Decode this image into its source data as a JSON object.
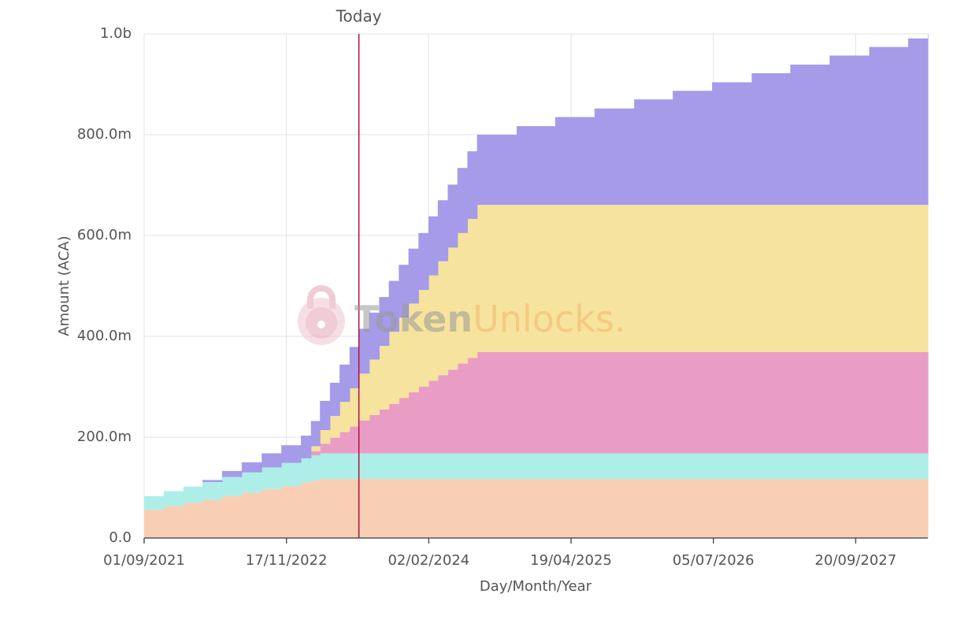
{
  "chart_data": {
    "type": "area",
    "step": true,
    "stacked": true,
    "xlabel": "Day/Month/Year",
    "ylabel": "Amount (ACA)",
    "watermark": [
      "Token",
      "Unlocks."
    ],
    "annotations": [
      {
        "text": "Today",
        "x": "30/06/2023",
        "color": "#b0103f"
      }
    ],
    "grid": true,
    "xlim": [
      "01/09/2021",
      "01/05/2028"
    ],
    "xticks": [
      "01/09/2021",
      "17/11/2022",
      "02/02/2024",
      "19/04/2025",
      "05/07/2026",
      "20/09/2027"
    ],
    "ylim": [
      0,
      1000
    ],
    "yticks": [
      {
        "value": 0,
        "label": "0.0"
      },
      {
        "value": 200,
        "label": "200.0m"
      },
      {
        "value": 400,
        "label": "400.0m"
      },
      {
        "value": 600,
        "label": "600.0m"
      },
      {
        "value": 800,
        "label": "800.0m"
      },
      {
        "value": 1000,
        "label": "1.0b"
      }
    ],
    "x": [
      "01/09/2021",
      "01/11/2021",
      "01/01/2022",
      "01/03/2022",
      "01/05/2022",
      "01/07/2022",
      "01/09/2022",
      "01/11/2022",
      "01/01/2023",
      "01/02/2023",
      "01/03/2023",
      "01/04/2023",
      "01/05/2023",
      "01/06/2023",
      "01/07/2023",
      "01/08/2023",
      "01/09/2023",
      "01/10/2023",
      "01/11/2023",
      "01/12/2023",
      "01/01/2024",
      "01/02/2024",
      "01/03/2024",
      "01/04/2024",
      "01/05/2024",
      "01/06/2024",
      "01/07/2024",
      "01/11/2024",
      "01/03/2025",
      "01/07/2025",
      "01/11/2025",
      "01/03/2026",
      "01/07/2026",
      "01/11/2026",
      "01/03/2027",
      "01/07/2027",
      "01/11/2027",
      "01/03/2028",
      "01/05/2028"
    ],
    "series": [
      {
        "color": "#f8cfb5",
        "values": [
          56,
          63,
          70,
          76,
          83,
          90,
          97,
          103,
          110,
          114,
          117,
          117,
          117,
          117,
          117,
          117,
          117,
          117,
          117,
          117,
          117,
          117,
          117,
          117,
          117,
          117,
          117,
          117,
          117,
          117,
          117,
          117,
          117,
          117,
          117,
          117,
          117,
          117,
          117
        ]
      },
      {
        "color": "#aeeee8",
        "values": [
          27,
          30,
          32,
          35,
          38,
          40,
          43,
          46,
          48,
          50,
          51,
          51,
          51,
          51,
          51,
          51,
          51,
          51,
          51,
          51,
          51,
          51,
          51,
          51,
          51,
          51,
          51,
          51,
          51,
          51,
          51,
          51,
          51,
          51,
          51,
          51,
          51,
          51,
          51
        ]
      },
      {
        "color": "#e99dc4",
        "values": [
          0,
          0,
          0,
          0,
          0,
          0,
          0,
          0,
          0,
          8,
          19,
          31,
          42,
          53,
          65,
          76,
          87,
          98,
          110,
          121,
          132,
          144,
          155,
          166,
          178,
          189,
          201,
          201,
          201,
          201,
          201,
          201,
          201,
          201,
          201,
          201,
          201,
          201,
          201
        ]
      },
      {
        "color": "#f6e39e",
        "values": [
          0,
          0,
          0,
          0,
          0,
          0,
          0,
          0,
          0,
          10,
          27,
          43,
          60,
          76,
          93,
          110,
          126,
          143,
          159,
          176,
          192,
          209,
          226,
          242,
          259,
          276,
          292,
          292,
          292,
          292,
          292,
          292,
          292,
          292,
          292,
          292,
          292,
          292,
          292
        ]
      },
      {
        "color": "#a59be9",
        "values": [
          0,
          0,
          0,
          4,
          12,
          20,
          28,
          35,
          45,
          50,
          58,
          66,
          74,
          82,
          89,
          93,
          97,
          101,
          105,
          109,
          113,
          117,
          121,
          125,
          129,
          134,
          139,
          156,
          174,
          191,
          209,
          226,
          243,
          261,
          278,
          296,
          313,
          330,
          339
        ]
      }
    ]
  }
}
